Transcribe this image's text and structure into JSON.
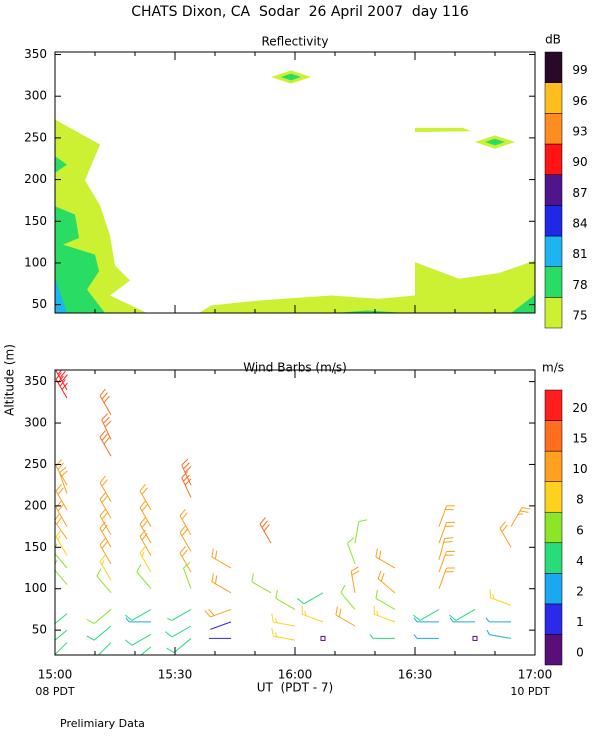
{
  "title": "CHATS Dixon, CA  Sodar  26 April 2007  day 116",
  "footnote": "Prelimiary Data",
  "chart_data": [
    {
      "type": "contour",
      "title": "Reflectivity",
      "xlim": [
        0,
        120
      ],
      "ylim": [
        40,
        353
      ],
      "yticks": [
        50,
        100,
        150,
        200,
        250,
        300,
        350
      ],
      "colorbar": {
        "label": "dB",
        "levels": [
          75,
          78,
          81,
          84,
          87,
          90,
          93,
          96,
          99
        ],
        "colors": [
          "#ccf032",
          "#28dc64",
          "#1eb4f0",
          "#1e28e6",
          "#50148c",
          "#ff1414",
          "#ff8c1e",
          "#ffbe1e",
          "#280a28"
        ]
      },
      "contours": [
        {
          "level": 75,
          "points": [
            [
              0,
              272
            ],
            [
              11.25,
              242
            ],
            [
              7.5,
              199
            ],
            [
              11.25,
              169
            ],
            [
              13.75,
              133
            ],
            [
              15,
              97
            ],
            [
              18.75,
              79
            ],
            [
              13.75,
              61
            ],
            [
              23,
              40
            ],
            [
              0,
              40
            ]
          ]
        },
        {
          "level": 78,
          "points": [
            [
              0,
              228
            ],
            [
              3,
              218
            ],
            [
              0,
              208
            ],
            [
              0,
              168
            ],
            [
              5,
              158
            ],
            [
              6,
              130
            ],
            [
              2,
              122
            ],
            [
              10,
              110
            ],
            [
              11,
              90
            ],
            [
              8,
              68
            ],
            [
              12.5,
              40
            ],
            [
              0,
              40
            ]
          ]
        },
        {
          "level": 81,
          "points": [
            [
              0,
              82
            ],
            [
              3,
              40
            ],
            [
              0,
              40
            ]
          ]
        },
        {
          "level": 75,
          "points": [
            [
              36,
              40
            ],
            [
              39,
              49
            ],
            [
              51,
              55
            ],
            [
              69,
              61
            ],
            [
              81,
              57
            ],
            [
              90,
              61
            ],
            [
              90,
              101
            ],
            [
              101,
              81
            ],
            [
              111,
              88
            ],
            [
              120,
              103
            ],
            [
              120,
              40
            ]
          ]
        },
        {
          "level": 78,
          "points": [
            [
              70,
              40
            ],
            [
              78,
              43
            ],
            [
              88,
              40
            ]
          ]
        },
        {
          "level": 78,
          "points": [
            [
              114,
              40
            ],
            [
              120,
              62
            ],
            [
              120,
              40
            ]
          ]
        },
        {
          "level": 75,
          "points": [
            [
              54,
              323
            ],
            [
              59,
              331
            ],
            [
              64,
              323
            ],
            [
              59,
              315
            ]
          ]
        },
        {
          "level": 78,
          "points": [
            [
              56.5,
              323
            ],
            [
              59,
              327
            ],
            [
              61.5,
              323
            ],
            [
              59,
              319
            ]
          ]
        },
        {
          "level": 75,
          "points": [
            [
              105,
              245
            ],
            [
              110,
              253
            ],
            [
              115,
              245
            ],
            [
              110,
              237
            ]
          ]
        },
        {
          "level": 78,
          "points": [
            [
              107.5,
              245
            ],
            [
              110,
              249
            ],
            [
              112.5,
              245
            ],
            [
              110,
              241
            ]
          ]
        },
        {
          "level": 75,
          "points": [
            [
              90,
              262
            ],
            [
              102,
              262
            ],
            [
              104,
              258
            ],
            [
              90,
              257
            ]
          ]
        }
      ]
    },
    {
      "type": "barb",
      "title": "Wind Barbs (m/s)",
      "ylabel": "Altitude (m)",
      "xlabel": "UT  (PDT - 7)",
      "x_start_note": "08 PDT",
      "x_end_note": "10 PDT",
      "xlim": [
        0,
        120
      ],
      "xticks": [
        {
          "value": 0,
          "label": "15:00"
        },
        {
          "value": 30,
          "label": "15:30"
        },
        {
          "value": 60,
          "label": "16:00"
        },
        {
          "value": 90,
          "label": "16:30"
        },
        {
          "value": 120,
          "label": "17:00"
        }
      ],
      "xminorticks": [
        10,
        20,
        40,
        50,
        70,
        80,
        100,
        110
      ],
      "ylim": [
        20,
        364
      ],
      "yticks": [
        50,
        100,
        150,
        200,
        250,
        300,
        350
      ],
      "colorbar": {
        "label": "m/s",
        "levels": [
          0,
          1,
          2,
          4,
          6,
          8,
          10,
          15,
          20
        ],
        "colors": [
          "#5a0f78",
          "#2a2ae8",
          "#1aa8f0",
          "#28dc78",
          "#8ce628",
          "#ffd21e",
          "#ffa01e",
          "#ff6e1e",
          "#ff1e1e"
        ]
      },
      "columns": [
        {
          "time": 3,
          "altitude": [
            340,
            330,
            225,
            215,
            195,
            175,
            160,
            140,
            125,
            105,
            70,
            50,
            35
          ],
          "speed": [
            21,
            20,
            12,
            12,
            11,
            11,
            10,
            9,
            7,
            6,
            5,
            5,
            5
          ],
          "direction": [
            330,
            330,
            330,
            340,
            330,
            330,
            325,
            330,
            320,
            320,
            230,
            230,
            225
          ]
        },
        {
          "time": 14,
          "altitude": [
            310,
            280,
            260,
            205,
            185,
            165,
            150,
            130,
            110,
            95,
            75,
            55,
            35
          ],
          "speed": [
            17,
            16,
            15,
            12,
            11,
            11,
            10,
            10,
            9,
            7,
            6,
            5,
            5
          ],
          "direction": [
            330,
            335,
            330,
            330,
            330,
            330,
            330,
            330,
            330,
            320,
            230,
            230,
            225
          ]
        },
        {
          "time": 24,
          "altitude": [
            195,
            175,
            155,
            140,
            120,
            100,
            75,
            60,
            45,
            30
          ],
          "speed": [
            11,
            11,
            10,
            10,
            9,
            7,
            5,
            3,
            5,
            5
          ],
          "direction": [
            330,
            330,
            330,
            330,
            330,
            320,
            240,
            270,
            240,
            230
          ]
        },
        {
          "time": 34,
          "altitude": [
            225,
            210,
            165,
            145,
            120,
            100,
            75,
            55,
            40
          ],
          "speed": [
            17,
            16,
            11,
            11,
            10,
            6,
            4,
            5,
            5
          ],
          "direction": [
            335,
            335,
            330,
            330,
            330,
            340,
            240,
            240,
            230
          ]
        },
        {
          "time": 44,
          "altitude": [
            125,
            95,
            75,
            60,
            40
          ],
          "speed": [
            11,
            10,
            10,
            1.5,
            1.5
          ],
          "direction": [
            300,
            300,
            250,
            250,
            270
          ]
        },
        {
          "time": 54,
          "altitude": [
            155,
            95
          ],
          "speed": [
            16,
            7
          ],
          "direction": [
            330,
            300
          ]
        },
        {
          "time": 60,
          "altitude": [
            75,
            55,
            38
          ],
          "speed": [
            7,
            9,
            9
          ],
          "direction": [
            300,
            280,
            280
          ]
        },
        {
          "time": 67,
          "altitude": [
            95,
            60,
            40
          ],
          "speed": [
            5,
            9,
            0.5
          ],
          "direction": [
            240,
            290,
            0
          ]
        },
        {
          "time": 75,
          "altitude": [
            155,
            130,
            95,
            75,
            55
          ],
          "speed": [
            7,
            7,
            10,
            6,
            10
          ],
          "direction": [
            10,
            340,
            350,
            320,
            300
          ]
        },
        {
          "time": 85,
          "altitude": [
            125,
            95,
            75,
            60,
            40
          ],
          "speed": [
            10,
            10,
            7,
            8,
            4
          ],
          "direction": [
            300,
            310,
            300,
            290,
            270
          ]
        },
        {
          "time": 96,
          "altitude": [
            175,
            155,
            135,
            120,
            100,
            75,
            60,
            40
          ],
          "speed": [
            12,
            12,
            11,
            11,
            10,
            5,
            3,
            3
          ],
          "direction": [
            20,
            20,
            15,
            20,
            20,
            240,
            270,
            270
          ]
        },
        {
          "time": 105,
          "altitude": [
            75,
            60,
            40
          ],
          "speed": [
            5,
            3,
            0.5
          ],
          "direction": [
            240,
            270,
            0
          ]
        },
        {
          "time": 114,
          "altitude": [
            175,
            150,
            80,
            60,
            40
          ],
          "speed": [
            13,
            12,
            8,
            3,
            3
          ],
          "direction": [
            30,
            330,
            290,
            270,
            280
          ]
        }
      ]
    }
  ]
}
